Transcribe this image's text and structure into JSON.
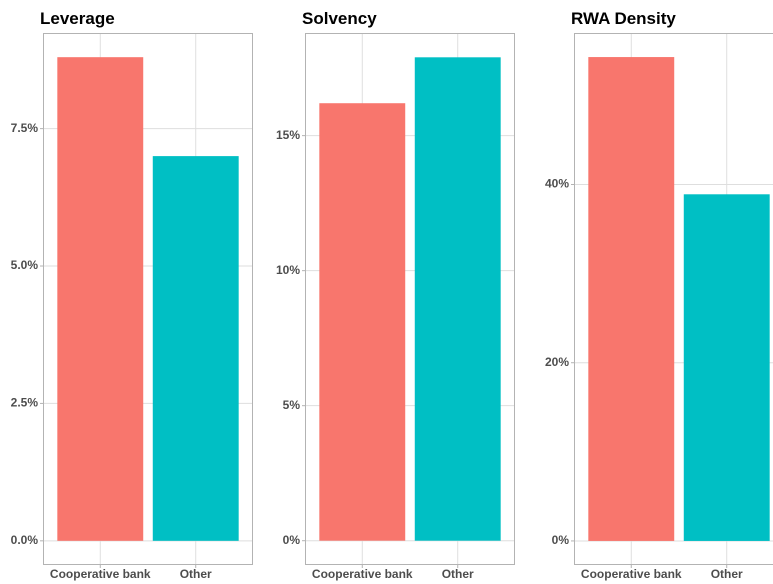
{
  "chart_data": [
    {
      "type": "bar",
      "title": "Leverage",
      "categories": [
        "Cooperative bank",
        "Other"
      ],
      "values": [
        8.8,
        7.0
      ],
      "colors": [
        "#F8766D",
        "#00BFC4"
      ],
      "ylim": [
        -0.44,
        9.24
      ],
      "yticks": [
        {
          "value": 0,
          "label": "0.0%"
        },
        {
          "value": 2.5,
          "label": "2.5%"
        },
        {
          "value": 5,
          "label": "5.0%"
        },
        {
          "value": 7.5,
          "label": "7.5%"
        }
      ],
      "grid": true
    },
    {
      "type": "bar",
      "title": "Solvency",
      "categories": [
        "Cooperative bank",
        "Other"
      ],
      "values": [
        16.2,
        17.9
      ],
      "colors": [
        "#F8766D",
        "#00BFC4"
      ],
      "ylim": [
        -0.9,
        18.8
      ],
      "yticks": [
        {
          "value": 0,
          "label": "0%"
        },
        {
          "value": 5,
          "label": "5%"
        },
        {
          "value": 10,
          "label": "10%"
        },
        {
          "value": 15,
          "label": "15%"
        }
      ],
      "grid": true
    },
    {
      "type": "bar",
      "title": "RWA Density",
      "categories": [
        "Cooperative bank",
        "Other"
      ],
      "values": [
        54.3,
        38.9
      ],
      "colors": [
        "#F8766D",
        "#00BFC4"
      ],
      "ylim": [
        -2.7,
        57.0
      ],
      "yticks": [
        {
          "value": 0,
          "label": "0%"
        },
        {
          "value": 20,
          "label": "20%"
        },
        {
          "value": 40,
          "label": "40%"
        }
      ],
      "grid": true
    }
  ]
}
